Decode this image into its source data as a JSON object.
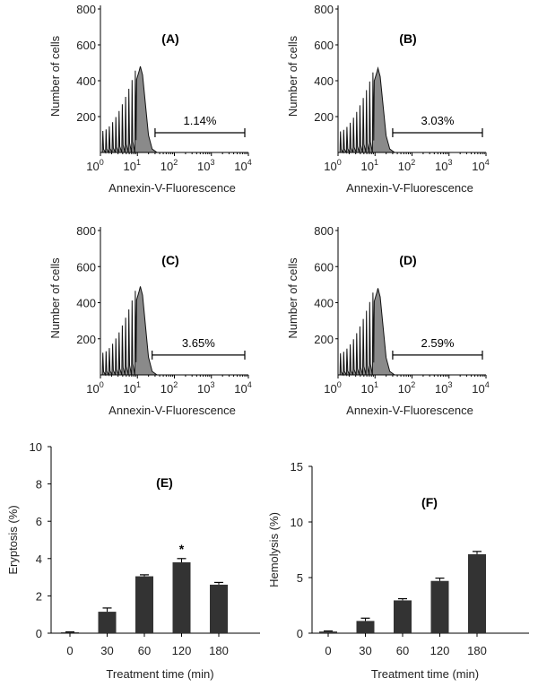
{
  "chart_data": [
    {
      "type": "histogram",
      "title": "(A)",
      "xlabel": "Annexin-V-Fluorescence",
      "ylabel": "Number of cells",
      "xscale": "log",
      "xlim": [
        1,
        10000
      ],
      "ylim": [
        0,
        800
      ],
      "yticks": [
        200,
        400,
        600,
        800
      ],
      "xticks": [
        {
          "base": "10",
          "exp": "0"
        },
        {
          "base": "10",
          "exp": "1"
        },
        {
          "base": "10",
          "exp": "2"
        },
        {
          "base": "10",
          "exp": "3"
        },
        {
          "base": "10",
          "exp": "4"
        }
      ],
      "peak_fluorescence": 12,
      "peak_count": 480,
      "gate": {
        "from": 30,
        "to": 8000,
        "label": "1.14%"
      }
    },
    {
      "type": "histogram",
      "title": "(B)",
      "xlabel": "Annexin-V-Fluorescence",
      "ylabel": "Number of cells",
      "xscale": "log",
      "xlim": [
        1,
        10000
      ],
      "ylim": [
        0,
        800
      ],
      "yticks": [
        200,
        400,
        600,
        800
      ],
      "xticks": [
        {
          "base": "10",
          "exp": "0"
        },
        {
          "base": "10",
          "exp": "1"
        },
        {
          "base": "10",
          "exp": "2"
        },
        {
          "base": "10",
          "exp": "3"
        },
        {
          "base": "10",
          "exp": "4"
        }
      ],
      "peak_fluorescence": 12,
      "peak_count": 470,
      "gate": {
        "from": 30,
        "to": 8000,
        "label": "3.03%"
      }
    },
    {
      "type": "histogram",
      "title": "(C)",
      "xlabel": "Annexin-V-Fluorescence",
      "ylabel": "Number of cells",
      "xscale": "log",
      "xlim": [
        1,
        10000
      ],
      "ylim": [
        0,
        800
      ],
      "yticks": [
        200,
        400,
        600,
        800
      ],
      "xticks": [
        {
          "base": "10",
          "exp": "0"
        },
        {
          "base": "10",
          "exp": "1"
        },
        {
          "base": "10",
          "exp": "2"
        },
        {
          "base": "10",
          "exp": "3"
        },
        {
          "base": "10",
          "exp": "4"
        }
      ],
      "peak_fluorescence": 12,
      "peak_count": 490,
      "gate": {
        "from": 25,
        "to": 8000,
        "label": "3.65%"
      }
    },
    {
      "type": "histogram",
      "title": "(D)",
      "xlabel": "Annexin-V-Fluorescence",
      "ylabel": "Number of cells",
      "xscale": "log",
      "xlim": [
        1,
        10000
      ],
      "ylim": [
        0,
        800
      ],
      "yticks": [
        200,
        400,
        600,
        800
      ],
      "xticks": [
        {
          "base": "10",
          "exp": "0"
        },
        {
          "base": "10",
          "exp": "1"
        },
        {
          "base": "10",
          "exp": "2"
        },
        {
          "base": "10",
          "exp": "3"
        },
        {
          "base": "10",
          "exp": "4"
        }
      ],
      "peak_fluorescence": 12,
      "peak_count": 480,
      "gate": {
        "from": 30,
        "to": 8000,
        "label": "2.59%"
      }
    },
    {
      "type": "bar",
      "title": "(E)",
      "xlabel": "Treatment time (min)",
      "ylabel": "Eryptosis (%)",
      "categories": [
        "0",
        "30",
        "60",
        "120",
        "180"
      ],
      "values": [
        0.05,
        1.15,
        3.05,
        3.8,
        2.6
      ],
      "errors": [
        0.02,
        0.2,
        0.08,
        0.2,
        0.12
      ],
      "ylim": [
        0,
        10
      ],
      "yticks": [
        "0",
        "2",
        "4",
        "6",
        "8",
        "10"
      ],
      "annotations": [
        {
          "category": "120",
          "text": "*"
        }
      ]
    },
    {
      "type": "bar",
      "title": "(F)",
      "xlabel": "Treatment time (min)",
      "ylabel": "Hemolysis (%)",
      "categories": [
        "0",
        "30",
        "60",
        "120",
        "180"
      ],
      "values": [
        0.15,
        1.1,
        2.95,
        4.7,
        7.1
      ],
      "errors": [
        0.05,
        0.25,
        0.15,
        0.25,
        0.25
      ],
      "ylim": [
        0,
        15
      ],
      "yticks": [
        "0",
        "5",
        "10",
        "15"
      ],
      "annotations": []
    }
  ],
  "colors": {
    "fill": "#8a8a8a",
    "bar": "#333333",
    "axis": "#000000"
  }
}
